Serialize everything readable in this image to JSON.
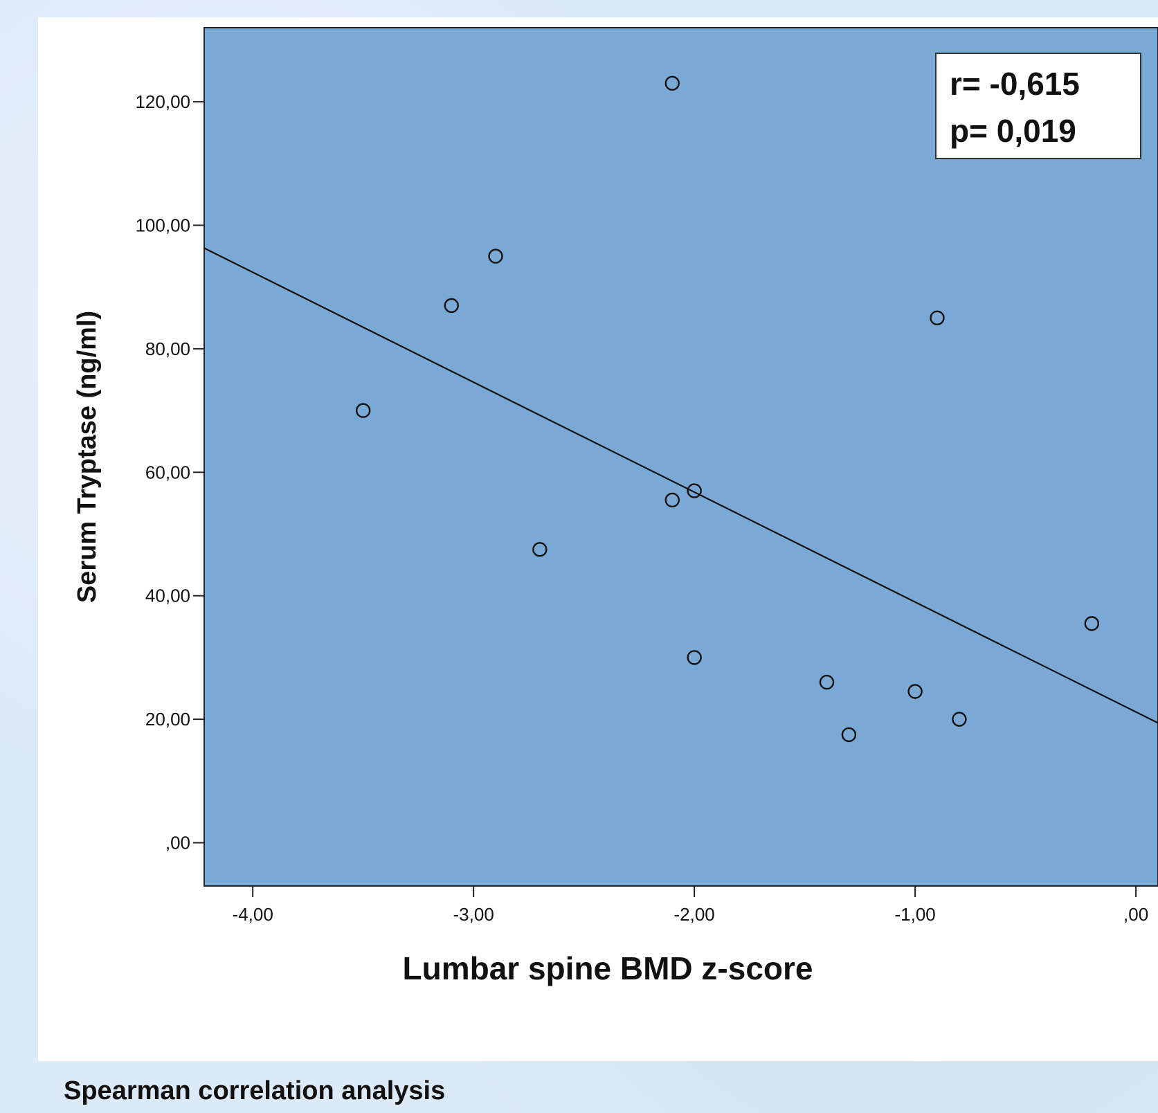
{
  "caption": "Spearman correlation analysis",
  "chart_data": {
    "type": "scatter",
    "xlabel": "Lumbar spine BMD z-score",
    "ylabel": "Serum Tryptase (ng/ml)",
    "xlim": [
      -4.22,
      0.1
    ],
    "ylim": [
      -7,
      132
    ],
    "x_ticks": [
      -4,
      -3,
      -2,
      -1,
      0
    ],
    "x_tick_labels": [
      "-4,00",
      "-3,00",
      "-2,00",
      "-1,00",
      ",00"
    ],
    "y_ticks": [
      0,
      20,
      40,
      60,
      80,
      100,
      120
    ],
    "y_tick_labels": [
      ",00",
      "20,00",
      "40,00",
      "60,00",
      "80,00",
      "100,00",
      "120,00"
    ],
    "points": [
      {
        "x": -3.5,
        "y": 70.0
      },
      {
        "x": -3.1,
        "y": 87.0
      },
      {
        "x": -2.9,
        "y": 95.0
      },
      {
        "x": -2.7,
        "y": 47.5
      },
      {
        "x": -2.1,
        "y": 123.0
      },
      {
        "x": -2.1,
        "y": 55.5
      },
      {
        "x": -2.0,
        "y": 57.0
      },
      {
        "x": -2.0,
        "y": 30.0
      },
      {
        "x": -1.4,
        "y": 26.0
      },
      {
        "x": -1.3,
        "y": 17.5
      },
      {
        "x": -1.0,
        "y": 24.5
      },
      {
        "x": -0.9,
        "y": 85.0
      },
      {
        "x": -0.8,
        "y": 20.0
      },
      {
        "x": -0.2,
        "y": 35.5
      }
    ],
    "fit_line": {
      "x": [
        -4.22,
        0.1
      ],
      "y": [
        96.3,
        19.4
      ]
    },
    "plot_background": "#7ba9d6",
    "panel_background": "#ffffff",
    "grid": false,
    "legend": "none",
    "annotation": {
      "lines": [
        "r= -0,615",
        "p= 0,019"
      ],
      "position": "top-right"
    }
  }
}
